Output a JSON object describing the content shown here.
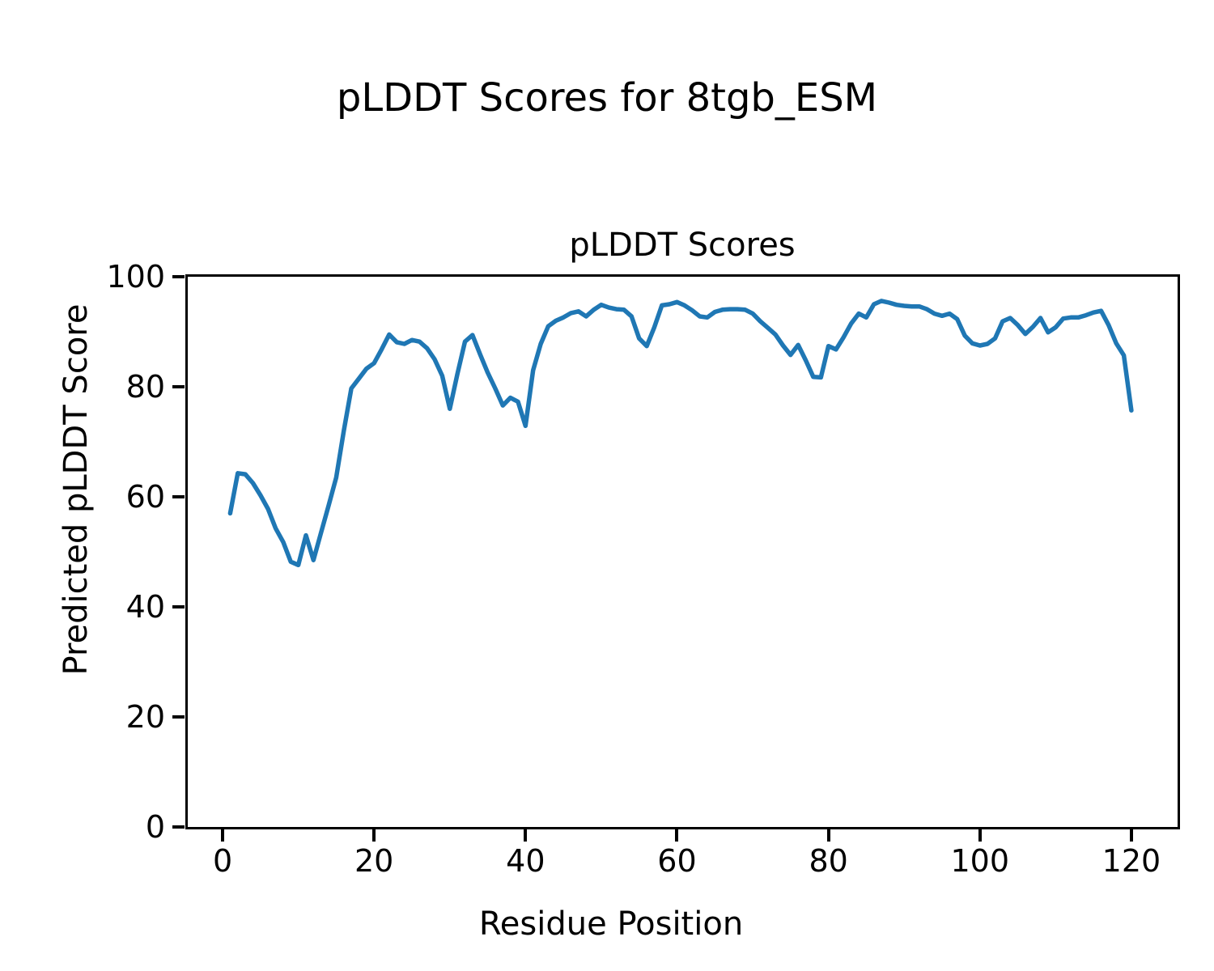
{
  "chart_data": {
    "type": "line",
    "title": "pLDDT Scores for 8tgb_ESM",
    "axes_title": "pLDDT Scores",
    "xlabel": "Residue Position",
    "ylabel": "Predicted pLDDT Score",
    "grid": false,
    "legend": "none",
    "line_color": "#1f77b4",
    "background_color": "#ffffff",
    "xlim": [
      -4.6,
      126.1
    ],
    "ylim": [
      0,
      100
    ],
    "x_ticks": [
      0,
      20,
      40,
      60,
      80,
      100,
      120
    ],
    "y_ticks": [
      0,
      20,
      40,
      60,
      80,
      100
    ],
    "x_start": 1,
    "series": [
      {
        "name": "pLDDT",
        "values": [
          57.0,
          64.3,
          64.1,
          62.5,
          60.3,
          57.8,
          54.3,
          51.8,
          48.2,
          47.6,
          53.0,
          48.5,
          53.5,
          58.4,
          63.5,
          72.0,
          79.7,
          81.5,
          83.3,
          84.3,
          86.8,
          89.5,
          88.1,
          87.8,
          88.5,
          88.2,
          87.0,
          85.0,
          82.0,
          76.0,
          82.3,
          88.2,
          89.4,
          85.9,
          82.6,
          79.7,
          76.6,
          78.0,
          77.3,
          72.9,
          83.0,
          87.8,
          91.0,
          92.0,
          92.6,
          93.4,
          93.7,
          92.8,
          94.0,
          94.9,
          94.4,
          94.1,
          94.0,
          92.8,
          88.8,
          87.4,
          90.8,
          94.8,
          95.0,
          95.4,
          94.8,
          93.9,
          92.8,
          92.6,
          93.6,
          94.0,
          94.1,
          94.1,
          94.0,
          93.3,
          91.9,
          90.7,
          89.5,
          87.5,
          85.8,
          87.6,
          84.8,
          81.8,
          81.7,
          87.4,
          86.8,
          89.0,
          91.5,
          93.3,
          92.6,
          95.0,
          95.6,
          95.3,
          94.9,
          94.7,
          94.6,
          94.6,
          94.1,
          93.3,
          92.9,
          93.3,
          92.3,
          89.3,
          87.9,
          87.5,
          87.8,
          88.8,
          91.9,
          92.5,
          91.2,
          89.6,
          90.9,
          92.5,
          89.9,
          90.8,
          92.4,
          92.6,
          92.6,
          93.0,
          93.5,
          93.8,
          91.2,
          87.9,
          85.7,
          75.7
        ]
      }
    ]
  }
}
